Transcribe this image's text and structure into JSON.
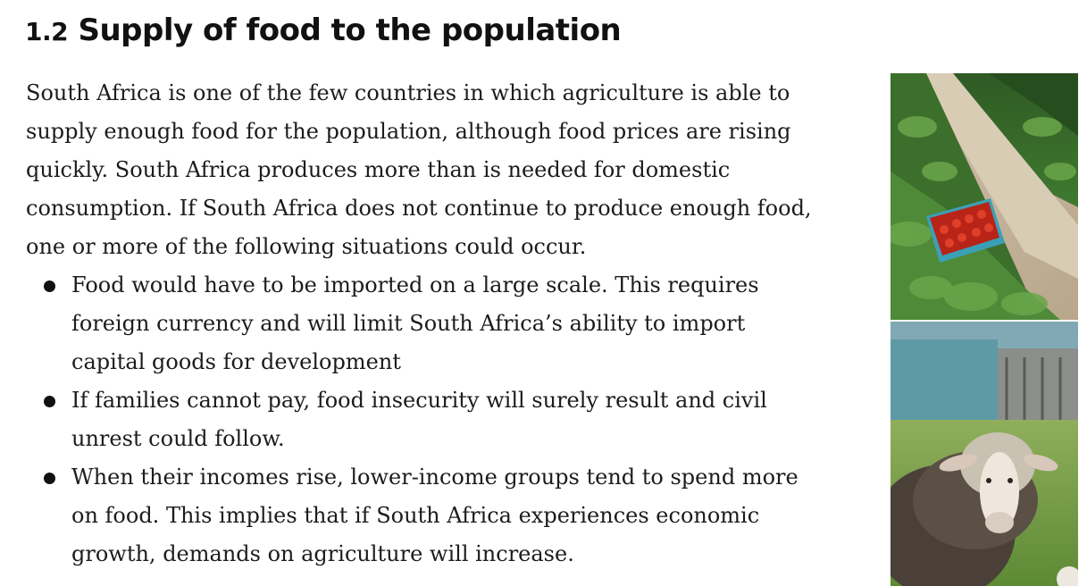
{
  "heading": {
    "number": "1.2",
    "title": "Supply of food to the population"
  },
  "intro": "South Africa is one of the few countries in which agriculture is able to supply enough food for the population, although food prices are rising quickly. South Africa produces more than is needed for domestic consumption. If South Africa does not continue to produce enough food, one or more of the following situations could occur.",
  "bullets": [
    "Food would have to be imported on a large scale. This requires foreign currency and will limit South Africa’s ability to import capital goods for development",
    "If families cannot pay, food insecurity will surely result and civil unrest could follow.",
    "When their incomes rise, lower-income groups tend to spend more on food. This implies that if South Africa experiences economic growth, demands on agriculture will increase."
  ],
  "images": {
    "top": "strawberry-field-photo",
    "bottom": "sheep-photo"
  },
  "colors": {
    "text": "#1c1c1c",
    "heading": "#111111",
    "background": "#ffffff"
  }
}
